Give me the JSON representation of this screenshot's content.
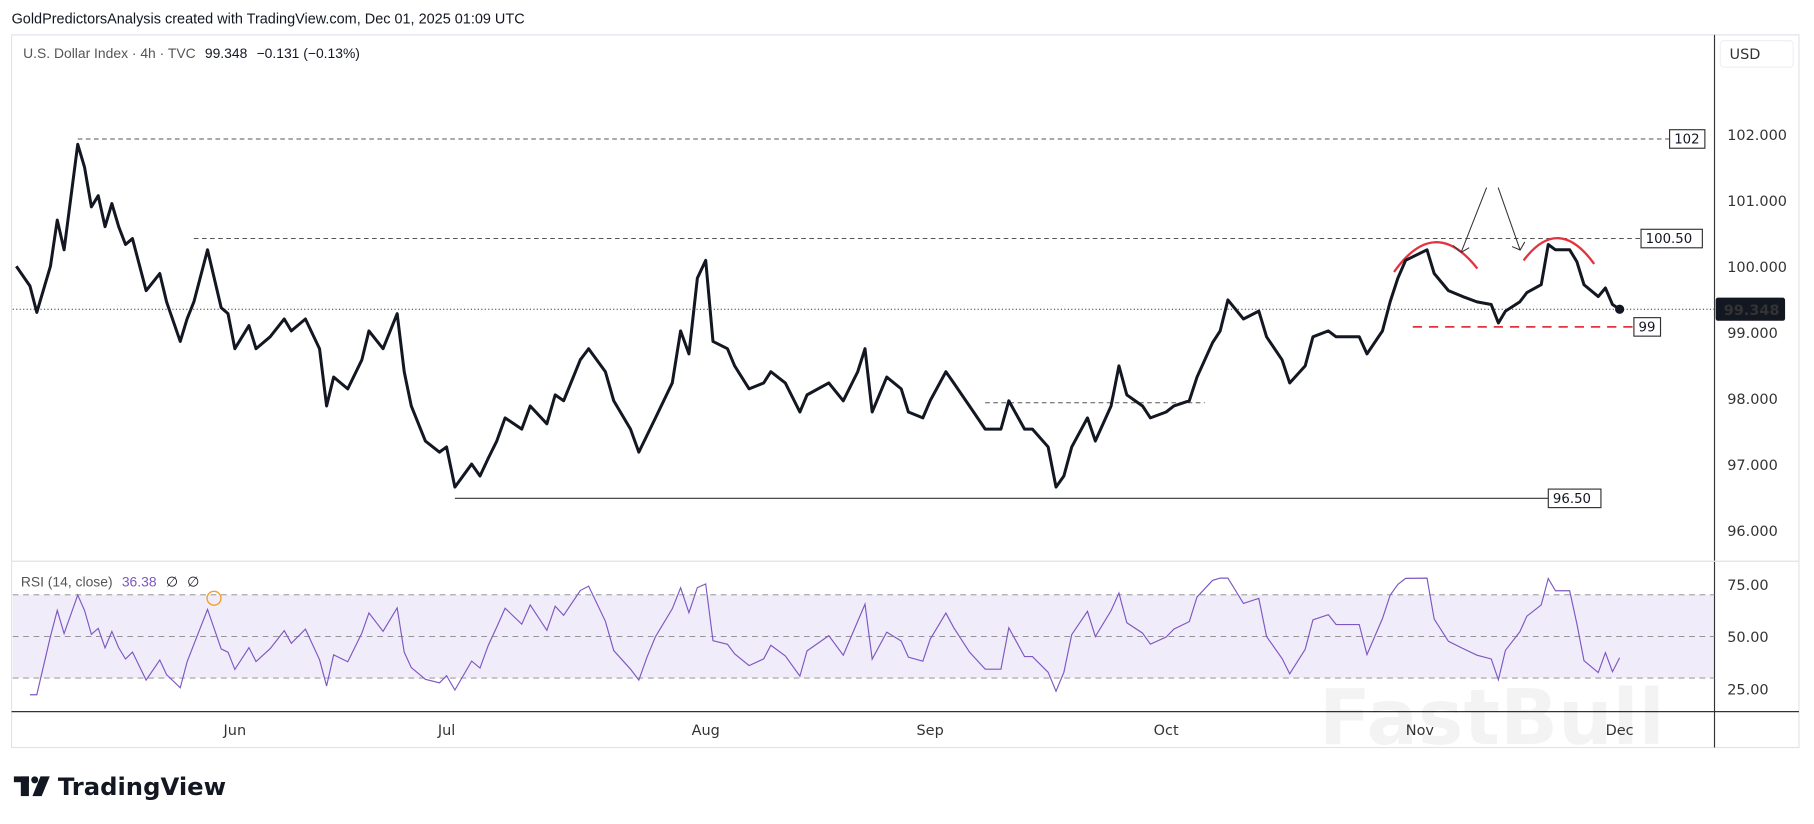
{
  "header": {
    "attribution": "GoldPredictorsAnalysis created with TradingView.com, Dec 01, 2025 01:09 UTC"
  },
  "legend": {
    "symbol": "U.S. Dollar Index · 4h · TVC",
    "last": "99.348",
    "change": "−0.131 (−0.13%)"
  },
  "currency_button": "USD",
  "rsi_legend": {
    "label": "RSI (14, close)",
    "value": "36.38",
    "extra1": "∅",
    "extra2": "∅"
  },
  "brand": "TradingView",
  "watermark": "FastBull",
  "colors": {
    "price_line": "#131722",
    "rsi_line": "#7e57c2",
    "rsi_band": "#f1ecfa",
    "arc": "#e5323f",
    "support_dash": "#e5323f",
    "marker": "#f0a030"
  },
  "chart_data": [
    {
      "type": "line",
      "title": "",
      "ylim": [
        95.5,
        102.6
      ],
      "y_ticks": [
        "102.000",
        "101.000",
        "100.000",
        "99.000",
        "98.000",
        "97.000",
        "96.000"
      ],
      "x_ticks": [
        "Jun",
        "Jul",
        "Aug",
        "Sep",
        "Oct",
        "Nov",
        "Dec"
      ],
      "current_price_label": "99.348",
      "grid": false,
      "series": [
        {
          "points": [
            [
              "2025-04-30",
              100.0
            ],
            [
              "2025-05-02",
              99.7
            ],
            [
              "2025-05-03",
              99.3
            ],
            [
              "2025-05-05",
              100.0
            ],
            [
              "2025-05-06",
              100.7
            ],
            [
              "2025-05-07",
              100.25
            ],
            [
              "2025-05-09",
              101.85
            ],
            [
              "2025-05-10",
              101.5
            ],
            [
              "2025-05-11",
              100.9
            ],
            [
              "2025-05-12",
              101.07
            ],
            [
              "2025-05-13",
              100.6
            ],
            [
              "2025-05-14",
              100.95
            ],
            [
              "2025-05-15",
              100.6
            ],
            [
              "2025-05-16",
              100.33
            ],
            [
              "2025-05-17",
              100.42
            ],
            [
              "2025-05-19",
              99.63
            ],
            [
              "2025-05-21",
              99.89
            ],
            [
              "2025-05-22",
              99.46
            ],
            [
              "2025-05-24",
              98.86
            ],
            [
              "2025-05-25",
              99.2
            ],
            [
              "2025-05-26",
              99.46
            ],
            [
              "2025-05-28",
              100.25
            ],
            [
              "2025-05-30",
              99.37
            ],
            [
              "2025-05-31",
              99.28
            ],
            [
              "2025-06-01",
              98.75
            ],
            [
              "2025-06-03",
              99.1
            ],
            [
              "2025-06-04",
              98.75
            ],
            [
              "2025-06-06",
              98.93
            ],
            [
              "2025-06-08",
              99.2
            ],
            [
              "2025-06-09",
              99.02
            ],
            [
              "2025-06-11",
              99.2
            ],
            [
              "2025-06-13",
              98.75
            ],
            [
              "2025-06-14",
              97.88
            ],
            [
              "2025-06-15",
              98.32
            ],
            [
              "2025-06-17",
              98.14
            ],
            [
              "2025-06-19",
              98.58
            ],
            [
              "2025-06-20",
              99.02
            ],
            [
              "2025-06-22",
              98.75
            ],
            [
              "2025-06-24",
              99.28
            ],
            [
              "2025-06-25",
              98.4
            ],
            [
              "2025-06-26",
              97.88
            ],
            [
              "2025-06-28",
              97.35
            ],
            [
              "2025-06-30",
              97.18
            ],
            [
              "2025-07-01",
              97.26
            ],
            [
              "2025-07-02",
              96.65
            ],
            [
              "2025-07-04",
              97.0
            ],
            [
              "2025-07-05",
              96.82
            ],
            [
              "2025-07-06",
              97.09
            ],
            [
              "2025-07-07",
              97.35
            ],
            [
              "2025-07-08",
              97.7
            ],
            [
              "2025-07-10",
              97.53
            ],
            [
              "2025-07-11",
              97.88
            ],
            [
              "2025-07-13",
              97.61
            ],
            [
              "2025-07-14",
              98.05
            ],
            [
              "2025-07-15",
              97.96
            ],
            [
              "2025-07-17",
              98.58
            ],
            [
              "2025-07-18",
              98.75
            ],
            [
              "2025-07-20",
              98.4
            ],
            [
              "2025-07-21",
              97.96
            ],
            [
              "2025-07-23",
              97.53
            ],
            [
              "2025-07-24",
              97.18
            ],
            [
              "2025-07-25",
              97.44
            ],
            [
              "2025-07-26",
              97.7
            ],
            [
              "2025-07-28",
              98.23
            ],
            [
              "2025-07-29",
              99.02
            ],
            [
              "2025-07-30",
              98.67
            ],
            [
              "2025-07-31",
              99.82
            ],
            [
              "2025-08-01",
              100.09
            ],
            [
              "2025-08-02",
              98.86
            ],
            [
              "2025-08-04",
              98.75
            ],
            [
              "2025-08-05",
              98.49
            ],
            [
              "2025-08-07",
              98.14
            ],
            [
              "2025-08-09",
              98.23
            ],
            [
              "2025-08-10",
              98.4
            ],
            [
              "2025-08-12",
              98.23
            ],
            [
              "2025-08-14",
              97.79
            ],
            [
              "2025-08-15",
              98.05
            ],
            [
              "2025-08-18",
              98.23
            ],
            [
              "2025-08-20",
              97.96
            ],
            [
              "2025-08-22",
              98.4
            ],
            [
              "2025-08-23",
              98.75
            ],
            [
              "2025-08-24",
              97.79
            ],
            [
              "2025-08-26",
              98.32
            ],
            [
              "2025-08-28",
              98.14
            ],
            [
              "2025-08-29",
              97.79
            ],
            [
              "2025-08-31",
              97.7
            ],
            [
              "2025-09-01",
              97.96
            ],
            [
              "2025-09-03",
              98.4
            ],
            [
              "2025-09-04",
              98.23
            ],
            [
              "2025-09-06",
              97.88
            ],
            [
              "2025-09-08",
              97.53
            ],
            [
              "2025-09-10",
              97.53
            ],
            [
              "2025-09-11",
              97.96
            ],
            [
              "2025-09-13",
              97.53
            ],
            [
              "2025-09-14",
              97.53
            ],
            [
              "2025-09-16",
              97.26
            ],
            [
              "2025-09-17",
              96.65
            ],
            [
              "2025-09-18",
              96.82
            ],
            [
              "2025-09-19",
              97.26
            ],
            [
              "2025-09-21",
              97.7
            ],
            [
              "2025-09-22",
              97.35
            ],
            [
              "2025-09-24",
              97.88
            ],
            [
              "2025-09-25",
              98.49
            ],
            [
              "2025-09-26",
              98.05
            ],
            [
              "2025-09-28",
              97.88
            ],
            [
              "2025-09-29",
              97.7
            ],
            [
              "2025-10-01",
              97.79
            ],
            [
              "2025-10-02",
              97.88
            ],
            [
              "2025-10-04",
              97.96
            ],
            [
              "2025-10-05",
              98.32
            ],
            [
              "2025-10-07",
              98.84
            ],
            [
              "2025-10-08",
              99.02
            ],
            [
              "2025-10-09",
              99.49
            ],
            [
              "2025-10-11",
              99.2
            ],
            [
              "2025-10-13",
              99.32
            ],
            [
              "2025-10-14",
              98.93
            ],
            [
              "2025-10-16",
              98.58
            ],
            [
              "2025-10-17",
              98.23
            ],
            [
              "2025-10-19",
              98.49
            ],
            [
              "2025-10-20",
              98.93
            ],
            [
              "2025-10-22",
              99.02
            ],
            [
              "2025-10-23",
              98.93
            ],
            [
              "2025-10-26",
              98.93
            ],
            [
              "2025-10-27",
              98.67
            ],
            [
              "2025-10-29",
              99.02
            ],
            [
              "2025-10-30",
              99.46
            ],
            [
              "2025-10-31",
              99.82
            ],
            [
              "2025-11-01",
              100.09
            ],
            [
              "2025-11-04",
              100.25
            ],
            [
              "2025-11-05",
              99.89
            ],
            [
              "2025-11-07",
              99.63
            ],
            [
              "2025-11-09",
              99.54
            ],
            [
              "2025-11-11",
              99.46
            ],
            [
              "2025-11-13",
              99.42
            ],
            [
              "2025-11-14",
              99.14
            ],
            [
              "2025-11-15",
              99.32
            ],
            [
              "2025-11-17",
              99.46
            ],
            [
              "2025-11-18",
              99.6
            ],
            [
              "2025-11-20",
              99.72
            ],
            [
              "2025-11-21",
              100.33
            ],
            [
              "2025-11-22",
              100.25
            ],
            [
              "2025-11-24",
              100.25
            ],
            [
              "2025-11-25",
              100.07
            ],
            [
              "2025-11-26",
              99.72
            ],
            [
              "2025-11-28",
              99.54
            ],
            [
              "2025-11-29",
              99.67
            ],
            [
              "2025-11-30",
              99.42
            ],
            [
              "2025-12-01",
              99.348
            ]
          ]
        }
      ],
      "annotations": {
        "levels": [
          {
            "label": "102",
            "value": 101.93,
            "from": "2025-05-09",
            "to": "2025-12-08",
            "style": "dashed"
          },
          {
            "label": "100.50",
            "value": 100.42,
            "from": "2025-05-26",
            "to": "2025-12-04",
            "style": "dashed"
          },
          {
            "label": "99",
            "value": 99.08,
            "from": "2025-11-02",
            "to": "2025-12-03",
            "style": "red-dashed"
          },
          {
            "label": "96.50",
            "value": 96.48,
            "from": "2025-07-02",
            "to": "2025-11-21",
            "style": "solid"
          },
          {
            "label": "",
            "value": 97.93,
            "from": "2025-09-08",
            "to": "2025-10-06",
            "style": "dashed"
          }
        ]
      }
    },
    {
      "type": "line",
      "title": "RSI (14, close)",
      "ylim": [
        20,
        80
      ],
      "y_ticks": [
        "75.00",
        "50.00",
        "25.00"
      ],
      "band": [
        30,
        70
      ],
      "last_value": 36.38
    }
  ]
}
